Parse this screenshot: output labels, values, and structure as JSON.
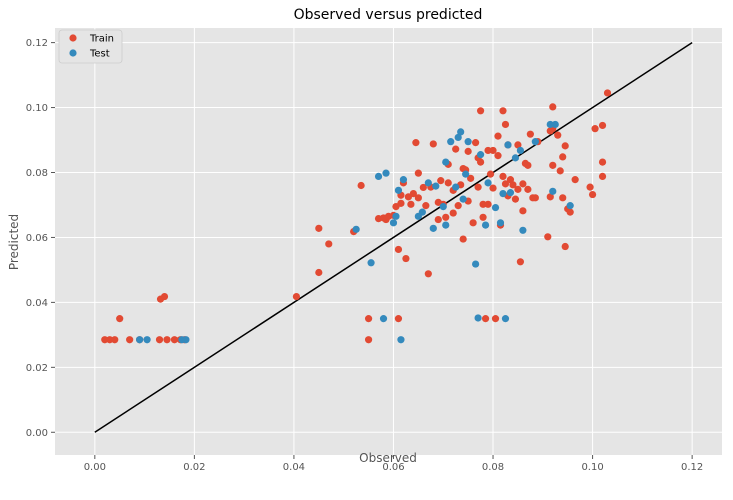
{
  "chart_data": {
    "type": "scatter",
    "title": "Observed versus predicted",
    "xlabel": "Observed",
    "ylabel": "Predicted",
    "xlim": [
      -0.008,
      0.126
    ],
    "ylim": [
      -0.007,
      0.1245
    ],
    "xticks": [
      0.0,
      0.02,
      0.04,
      0.06,
      0.08,
      0.1,
      0.12
    ],
    "xtick_labels": [
      "0.00",
      "0.02",
      "0.04",
      "0.06",
      "0.08",
      "0.10",
      "0.12"
    ],
    "yticks": [
      0.0,
      0.02,
      0.04,
      0.06,
      0.08,
      0.1,
      0.12
    ],
    "ytick_labels": [
      "0.00",
      "0.02",
      "0.04",
      "0.06",
      "0.08",
      "0.10",
      "0.12"
    ],
    "grid": true,
    "legend_position": "top-left",
    "background_color": "#e5e5e5",
    "grid_color": "#ffffff",
    "reference_line": {
      "x": [
        0.0,
        0.12
      ],
      "y": [
        0.0,
        0.12
      ],
      "color": "#000000"
    },
    "series": [
      {
        "name": "Train",
        "color": "#e24a33",
        "points": [
          [
            0.002,
            0.0285
          ],
          [
            0.003,
            0.0285
          ],
          [
            0.004,
            0.0285
          ],
          [
            0.005,
            0.035
          ],
          [
            0.007,
            0.0285
          ],
          [
            0.009,
            0.0285
          ],
          [
            0.013,
            0.0285
          ],
          [
            0.0132,
            0.041
          ],
          [
            0.014,
            0.0418
          ],
          [
            0.0145,
            0.0285
          ],
          [
            0.016,
            0.0285
          ],
          [
            0.0172,
            0.0285
          ],
          [
            0.018,
            0.0285
          ],
          [
            0.0405,
            0.0418
          ],
          [
            0.045,
            0.0492
          ],
          [
            0.045,
            0.0628
          ],
          [
            0.047,
            0.058
          ],
          [
            0.052,
            0.0618
          ],
          [
            0.0535,
            0.076
          ],
          [
            0.055,
            0.0285
          ],
          [
            0.055,
            0.035
          ],
          [
            0.057,
            0.0658
          ],
          [
            0.058,
            0.066
          ],
          [
            0.0585,
            0.0655
          ],
          [
            0.059,
            0.0665
          ],
          [
            0.06,
            0.0668
          ],
          [
            0.0605,
            0.0695
          ],
          [
            0.061,
            0.0563
          ],
          [
            0.061,
            0.035
          ],
          [
            0.0615,
            0.073
          ],
          [
            0.0615,
            0.0705
          ],
          [
            0.062,
            0.0768
          ],
          [
            0.0625,
            0.0535
          ],
          [
            0.063,
            0.0725
          ],
          [
            0.0635,
            0.0702
          ],
          [
            0.064,
            0.0735
          ],
          [
            0.0645,
            0.0892
          ],
          [
            0.065,
            0.0722
          ],
          [
            0.065,
            0.0798
          ],
          [
            0.066,
            0.0754
          ],
          [
            0.0665,
            0.0698
          ],
          [
            0.067,
            0.0488
          ],
          [
            0.0675,
            0.0755
          ],
          [
            0.068,
            0.0888
          ],
          [
            0.069,
            0.0708
          ],
          [
            0.069,
            0.0655
          ],
          [
            0.0695,
            0.0775
          ],
          [
            0.07,
            0.0702
          ],
          [
            0.0705,
            0.0662
          ],
          [
            0.071,
            0.0825
          ],
          [
            0.071,
            0.0768
          ],
          [
            0.072,
            0.0745
          ],
          [
            0.072,
            0.0675
          ],
          [
            0.0725,
            0.0872
          ],
          [
            0.073,
            0.0698
          ],
          [
            0.0735,
            0.0762
          ],
          [
            0.074,
            0.0812
          ],
          [
            0.074,
            0.0595
          ],
          [
            0.0745,
            0.0808
          ],
          [
            0.075,
            0.0712
          ],
          [
            0.075,
            0.0865
          ],
          [
            0.0755,
            0.0782
          ],
          [
            0.076,
            0.0645
          ],
          [
            0.0765,
            0.0892
          ],
          [
            0.077,
            0.0755
          ],
          [
            0.077,
            0.0845
          ],
          [
            0.0775,
            0.0832
          ],
          [
            0.0775,
            0.099
          ],
          [
            0.078,
            0.0702
          ],
          [
            0.078,
            0.0662
          ],
          [
            0.0785,
            0.035
          ],
          [
            0.079,
            0.0868
          ],
          [
            0.079,
            0.0702
          ],
          [
            0.0795,
            0.0795
          ],
          [
            0.08,
            0.0868
          ],
          [
            0.08,
            0.0752
          ],
          [
            0.0805,
            0.035
          ],
          [
            0.081,
            0.0912
          ],
          [
            0.081,
            0.0852
          ],
          [
            0.0815,
            0.0638
          ],
          [
            0.082,
            0.099
          ],
          [
            0.082,
            0.0788
          ],
          [
            0.0825,
            0.0948
          ],
          [
            0.0825,
            0.0765
          ],
          [
            0.083,
            0.0885
          ],
          [
            0.083,
            0.0728
          ],
          [
            0.0835,
            0.0778
          ],
          [
            0.084,
            0.0762
          ],
          [
            0.0845,
            0.0718
          ],
          [
            0.085,
            0.0748
          ],
          [
            0.085,
            0.0885
          ],
          [
            0.0855,
            0.0525
          ],
          [
            0.086,
            0.0682
          ],
          [
            0.086,
            0.0765
          ],
          [
            0.0865,
            0.0828
          ],
          [
            0.087,
            0.0822
          ],
          [
            0.087,
            0.0748
          ],
          [
            0.0875,
            0.0918
          ],
          [
            0.088,
            0.0722
          ],
          [
            0.0885,
            0.0722
          ],
          [
            0.089,
            0.0895
          ],
          [
            0.091,
            0.0602
          ],
          [
            0.0915,
            0.0928
          ],
          [
            0.0915,
            0.0725
          ],
          [
            0.092,
            0.0935
          ],
          [
            0.092,
            0.0822
          ],
          [
            0.092,
            0.1002
          ],
          [
            0.093,
            0.0915
          ],
          [
            0.0935,
            0.0805
          ],
          [
            0.094,
            0.0722
          ],
          [
            0.094,
            0.0848
          ],
          [
            0.0945,
            0.0882
          ],
          [
            0.0945,
            0.0572
          ],
          [
            0.095,
            0.0688
          ],
          [
            0.0955,
            0.0678
          ],
          [
            0.0965,
            0.0778
          ],
          [
            0.0995,
            0.0755
          ],
          [
            0.1,
            0.0732
          ],
          [
            0.1005,
            0.0935
          ],
          [
            0.102,
            0.0945
          ],
          [
            0.102,
            0.0832
          ],
          [
            0.102,
            0.0788
          ],
          [
            0.103,
            0.1045
          ]
        ]
      },
      {
        "name": "Test",
        "color": "#348abd",
        "points": [
          [
            0.009,
            0.0285
          ],
          [
            0.0105,
            0.0285
          ],
          [
            0.0175,
            0.0285
          ],
          [
            0.0183,
            0.0285
          ],
          [
            0.0525,
            0.0625
          ],
          [
            0.0555,
            0.0522
          ],
          [
            0.057,
            0.0788
          ],
          [
            0.058,
            0.035
          ],
          [
            0.0585,
            0.0798
          ],
          [
            0.06,
            0.0645
          ],
          [
            0.0605,
            0.0665
          ],
          [
            0.061,
            0.0745
          ],
          [
            0.0615,
            0.0285
          ],
          [
            0.062,
            0.0778
          ],
          [
            0.065,
            0.0665
          ],
          [
            0.0658,
            0.0678
          ],
          [
            0.067,
            0.0768
          ],
          [
            0.068,
            0.0628
          ],
          [
            0.0685,
            0.0758
          ],
          [
            0.07,
            0.0695
          ],
          [
            0.0705,
            0.0638
          ],
          [
            0.0705,
            0.0832
          ],
          [
            0.0715,
            0.0895
          ],
          [
            0.0725,
            0.0755
          ],
          [
            0.073,
            0.0908
          ],
          [
            0.0735,
            0.0925
          ],
          [
            0.074,
            0.0718
          ],
          [
            0.0745,
            0.0795
          ],
          [
            0.075,
            0.0895
          ],
          [
            0.0765,
            0.0518
          ],
          [
            0.077,
            0.0352
          ],
          [
            0.0775,
            0.0855
          ],
          [
            0.0785,
            0.0638
          ],
          [
            0.079,
            0.0768
          ],
          [
            0.0805,
            0.0692
          ],
          [
            0.0815,
            0.0645
          ],
          [
            0.082,
            0.0735
          ],
          [
            0.0825,
            0.035
          ],
          [
            0.083,
            0.0885
          ],
          [
            0.0835,
            0.0738
          ],
          [
            0.0845,
            0.0845
          ],
          [
            0.0855,
            0.0868
          ],
          [
            0.086,
            0.0622
          ],
          [
            0.0885,
            0.0895
          ],
          [
            0.0915,
            0.0948
          ],
          [
            0.092,
            0.0742
          ],
          [
            0.0925,
            0.0948
          ],
          [
            0.0955,
            0.0698
          ]
        ]
      }
    ]
  }
}
